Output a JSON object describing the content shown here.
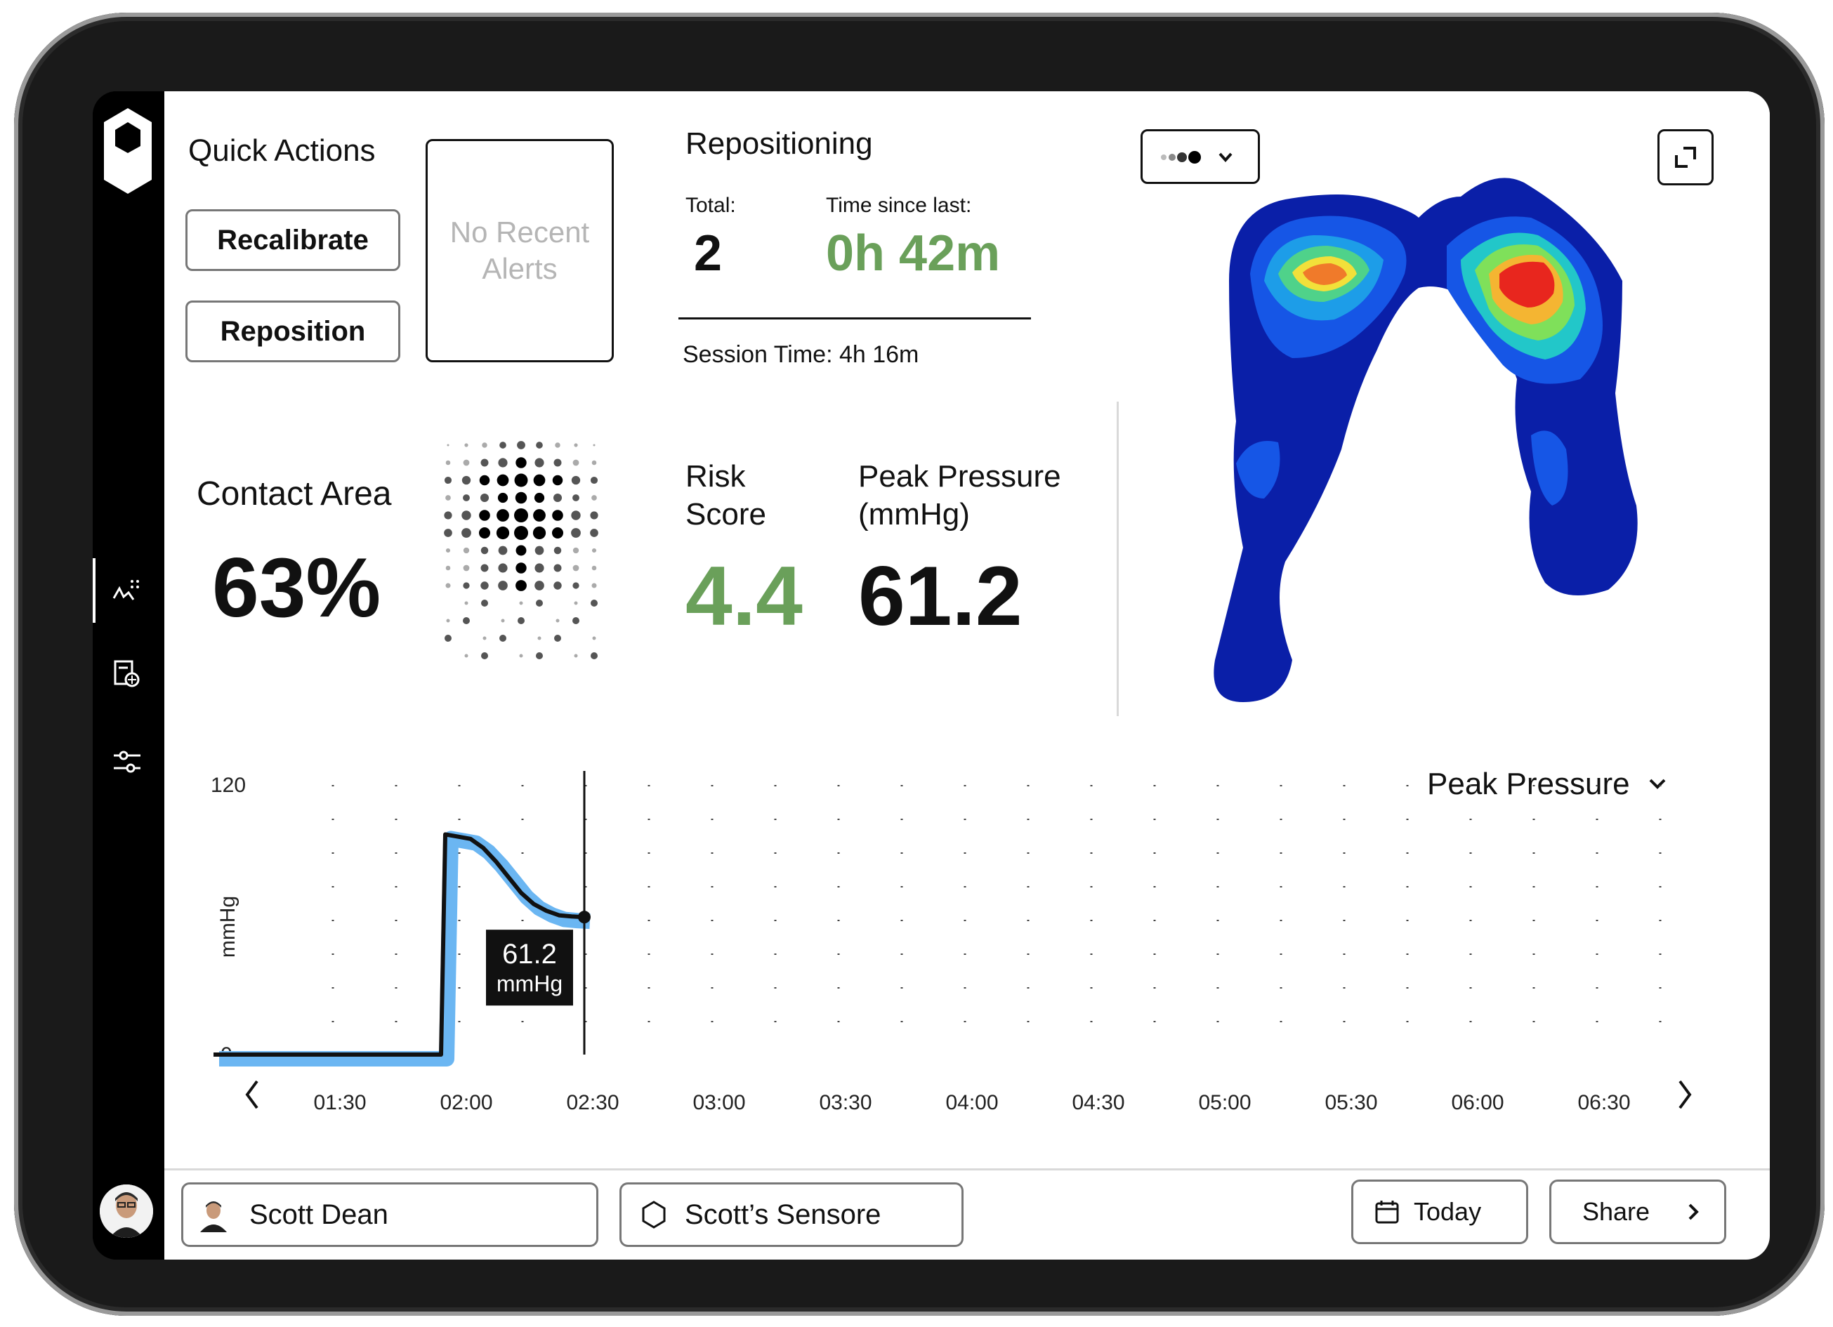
{
  "quick_actions": {
    "title": "Quick Actions",
    "recalibrate_label": "Recalibrate",
    "reposition_label": "Reposition",
    "alerts_text": "No Recent Alerts"
  },
  "repositioning": {
    "title": "Repositioning",
    "total_label": "Total:",
    "total_value": "2",
    "since_label": "Time since last:",
    "since_value": "0h 42m",
    "session_text": "Session Time: 4h 16m"
  },
  "contact_area": {
    "title": "Contact Area",
    "value": "63%"
  },
  "risk": {
    "risk_label_1": "Risk",
    "risk_label_2": "Score",
    "risk_value": "4.4",
    "peak_label_1": "Peak Pressure",
    "peak_label_2": "(mmHg)",
    "peak_value": "61.2"
  },
  "chart_data": {
    "type": "line",
    "title": "Peak Pressure",
    "ylabel": "mmHg",
    "xlabel": "",
    "ylim": [
      0,
      120
    ],
    "y_ticks": [
      "120",
      "0"
    ],
    "x_ticks": [
      "01:30",
      "02:00",
      "02:30",
      "03:00",
      "03:30",
      "04:00",
      "04:30",
      "05:00",
      "05:30",
      "06:00",
      "06:30"
    ],
    "series": [
      {
        "name": "Peak Pressure",
        "x_minutes": [
          60,
          70,
          80,
          90,
          100,
          110,
          114,
          115,
          118,
          121,
          124,
          127,
          130,
          133,
          136,
          139,
          142,
          145,
          148
        ],
        "values": [
          0,
          0,
          0,
          0,
          0,
          0,
          0,
          98,
          97,
          96,
          92,
          86,
          79,
          72,
          67,
          64,
          62,
          61.5,
          61.2
        ]
      }
    ],
    "cursor_label_value": "61.2",
    "cursor_label_unit": "mmHg"
  },
  "chart_header": {
    "dropdown_label": "Peak Pressure"
  },
  "footer": {
    "patient_name": "Scott Dean",
    "sensor_name": "Scott’s Sensore",
    "date_label": "Today",
    "share_label": "Share"
  },
  "colors": {
    "accent_green": "#6aa05a",
    "line_blue": "#6bb6f2",
    "line_black": "#111111"
  }
}
